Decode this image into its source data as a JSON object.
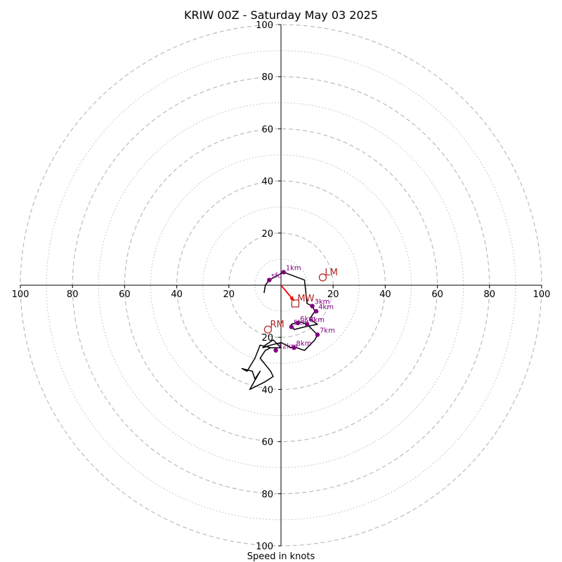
{
  "chart_data": {
    "type": "hodograph",
    "title": "KRIW 00Z - Saturday May 03 2025",
    "xlabel": "Speed in knots",
    "range": [
      -100,
      100
    ],
    "major_rings": [
      20,
      40,
      60,
      80,
      100
    ],
    "minor_rings": [
      10,
      30,
      50,
      70,
      90
    ],
    "x_tick_labels": [
      "100",
      "80",
      "60",
      "40",
      "20",
      "20",
      "40",
      "60",
      "80",
      "100"
    ],
    "x_tick_values": [
      -100,
      -80,
      -60,
      -40,
      -20,
      20,
      40,
      60,
      80,
      100
    ],
    "y_tick_labels": [
      "100",
      "80",
      "60",
      "40",
      "20",
      "20",
      "40",
      "60",
      "80",
      "100"
    ],
    "y_tick_values": [
      100,
      80,
      60,
      40,
      20,
      -20,
      -40,
      -60,
      -80,
      -100
    ],
    "colors": {
      "trace": "#000000",
      "height_marker": "#800080",
      "storm_motion": "#b22222",
      "mean_wind_vector": "#ff0000",
      "grid": "#bbbbbb"
    },
    "trace": [
      [
        -6.5,
        -3
      ],
      [
        -6,
        0
      ],
      [
        -4.5,
        2
      ],
      [
        1,
        5
      ],
      [
        9,
        2
      ],
      [
        10,
        -7
      ],
      [
        12,
        -8
      ],
      [
        13,
        -10
      ],
      [
        11,
        -13
      ],
      [
        14,
        -15
      ],
      [
        9,
        -16
      ],
      [
        5,
        -17
      ],
      [
        4,
        -15
      ],
      [
        7,
        -14
      ],
      [
        10,
        -15
      ],
      [
        12,
        -17
      ],
      [
        12,
        -17
      ],
      [
        14,
        -19
      ],
      [
        13,
        -21
      ],
      [
        9,
        -25
      ],
      [
        6,
        -24
      ],
      [
        5,
        -24
      ],
      [
        4,
        -24
      ],
      [
        0,
        -22
      ],
      [
        -4,
        -23
      ],
      [
        -7,
        -24
      ],
      [
        -6,
        -23
      ],
      [
        -3,
        -21
      ],
      [
        0,
        -24
      ],
      [
        -4,
        -24
      ],
      [
        -8,
        -23
      ],
      [
        -10,
        -28
      ],
      [
        -13,
        -33
      ],
      [
        -15,
        -32
      ],
      [
        -11,
        -33
      ],
      [
        -10,
        -36
      ],
      [
        -8,
        -33
      ],
      [
        -12,
        -40
      ],
      [
        -6,
        -37
      ],
      [
        -3,
        -35
      ],
      [
        -4,
        -33
      ],
      [
        -8,
        -28
      ],
      [
        -6,
        -25
      ],
      [
        -4,
        -24
      ],
      [
        -2,
        -24
      ]
    ],
    "height_markers": [
      {
        "label": "sfc",
        "u": -4.5,
        "v": 2
      },
      {
        "label": "1km",
        "u": 1,
        "v": 5
      },
      {
        "label": "3km",
        "u": 12,
        "v": -8
      },
      {
        "label": "4km",
        "u": 13.5,
        "v": -10
      },
      {
        "label": "5km",
        "u": 4,
        "v": -16
      },
      {
        "label": "6km",
        "u": 6.5,
        "v": -14.5
      },
      {
        "label": "6km",
        "u": 10,
        "v": -15
      },
      {
        "label": "7km",
        "u": 14,
        "v": -19
      },
      {
        "label": "8km",
        "u": 5,
        "v": -24
      },
      {
        "label": "12km",
        "u": -2,
        "v": -25
      }
    ],
    "storm_motions": [
      {
        "label": "LM",
        "u": 16,
        "v": 3,
        "marker": "circle"
      },
      {
        "label": "RM",
        "u": -5,
        "v": -17,
        "marker": "circle"
      },
      {
        "label": "MW",
        "u": 5.5,
        "v": -7,
        "marker": "square"
      }
    ],
    "mean_wind_vector": {
      "from": [
        0,
        0
      ],
      "to": [
        5,
        -6
      ]
    }
  }
}
